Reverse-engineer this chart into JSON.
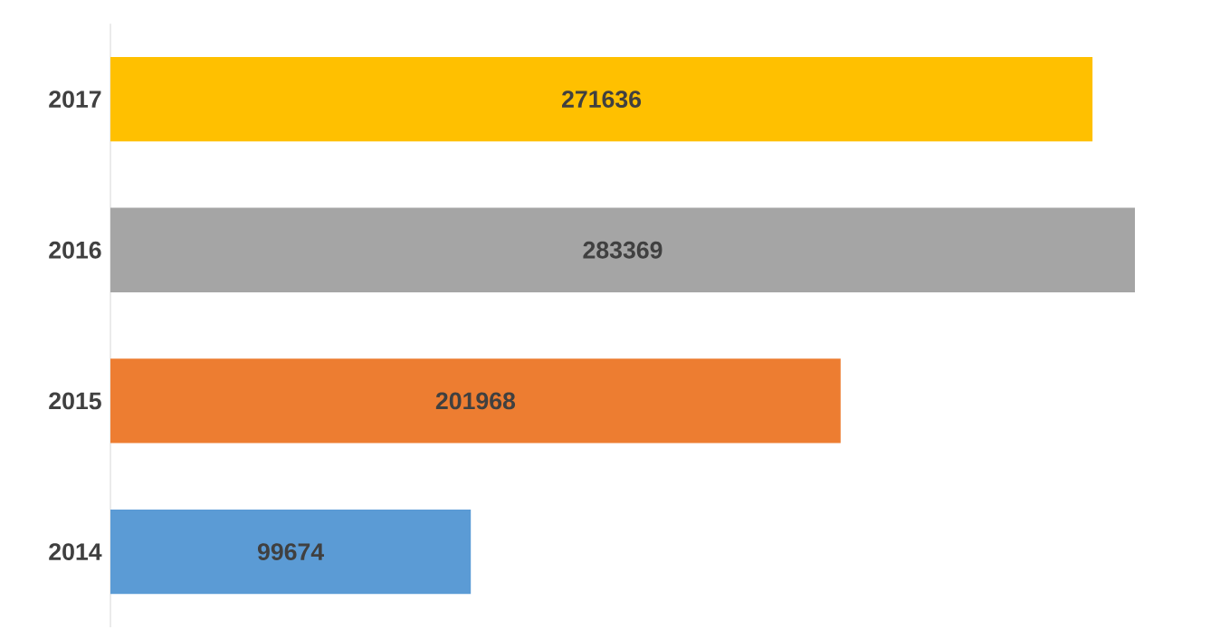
{
  "chart_data": {
    "type": "bar",
    "orientation": "horizontal",
    "categories": [
      "2017",
      "2016",
      "2015",
      "2014"
    ],
    "values": [
      271636,
      283369,
      201968,
      99674
    ],
    "colors": [
      "#ffc000",
      "#a5a5a5",
      "#ed7d31",
      "#5b9bd5"
    ],
    "data_labels": true
  }
}
